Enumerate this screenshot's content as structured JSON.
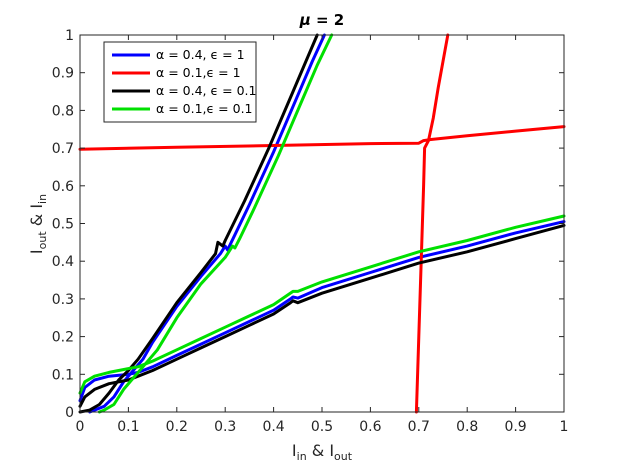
{
  "chart_data": {
    "type": "line",
    "title": {
      "symbol": "μ",
      "rest": " = 2"
    },
    "xlabel": {
      "main": "I",
      "sub1": "in",
      "mid": " & I",
      "sub2": "out"
    },
    "ylabel": {
      "main": "I",
      "sub1": "out",
      "mid": " & I",
      "sub2": "in"
    },
    "xlim": [
      0,
      1
    ],
    "ylim": [
      0,
      1
    ],
    "xticks": [
      "0",
      "0.1",
      "0.2",
      "0.3",
      "0.4",
      "0.5",
      "0.6",
      "0.7",
      "0.8",
      "0.9",
      "1"
    ],
    "yticks": [
      "0",
      "0.1",
      "0.2",
      "0.3",
      "0.4",
      "0.5",
      "0.6",
      "0.7",
      "0.8",
      "0.9",
      "1"
    ],
    "grid": false,
    "legend_position": "top-left",
    "series": [
      {
        "name": "α = 0.4, ϵ = 1",
        "color": "#0000ff",
        "curves": [
          [
            [
              0.02,
              0.0
            ],
            [
              0.03,
              0.005
            ],
            [
              0.05,
              0.015
            ],
            [
              0.07,
              0.04
            ],
            [
              0.09,
              0.08
            ],
            [
              0.11,
              0.11
            ],
            [
              0.13,
              0.14
            ],
            [
              0.15,
              0.185
            ],
            [
              0.2,
              0.28
            ],
            [
              0.25,
              0.36
            ],
            [
              0.29,
              0.42
            ],
            [
              0.3,
              0.44
            ],
            [
              0.305,
              0.43
            ],
            [
              0.32,
              0.47
            ],
            [
              0.35,
              0.55
            ],
            [
              0.4,
              0.69
            ],
            [
              0.45,
              0.84
            ],
            [
              0.48,
              0.93
            ],
            [
              0.505,
              1.0
            ]
          ],
          [
            [
              0.0,
              0.03
            ],
            [
              0.01,
              0.065
            ],
            [
              0.03,
              0.085
            ],
            [
              0.06,
              0.095
            ],
            [
              0.1,
              0.1
            ],
            [
              0.12,
              0.105
            ],
            [
              0.15,
              0.12
            ],
            [
              0.2,
              0.15
            ],
            [
              0.25,
              0.18
            ],
            [
              0.3,
              0.21
            ],
            [
              0.35,
              0.24
            ],
            [
              0.4,
              0.27
            ],
            [
              0.435,
              0.3
            ],
            [
              0.44,
              0.305
            ],
            [
              0.45,
              0.302
            ],
            [
              0.5,
              0.33
            ],
            [
              0.6,
              0.37
            ],
            [
              0.7,
              0.41
            ],
            [
              0.8,
              0.44
            ],
            [
              0.9,
              0.475
            ],
            [
              1.0,
              0.505
            ]
          ]
        ]
      },
      {
        "name": "α = 0.1,ϵ = 1",
        "color": "#ff0000",
        "curves": [
          [
            [
              0.0,
              0.697
            ],
            [
              0.2,
              0.702
            ],
            [
              0.4,
              0.707
            ],
            [
              0.6,
              0.712
            ],
            [
              0.7,
              0.713
            ],
            [
              0.71,
              0.72
            ],
            [
              0.72,
              0.722
            ],
            [
              0.8,
              0.733
            ],
            [
              0.9,
              0.745
            ],
            [
              1.0,
              0.757
            ]
          ],
          [
            [
              0.695,
              0.0
            ],
            [
              0.7,
              0.2
            ],
            [
              0.705,
              0.4
            ],
            [
              0.71,
              0.6
            ],
            [
              0.712,
              0.7
            ],
            [
              0.72,
              0.72
            ],
            [
              0.73,
              0.78
            ],
            [
              0.74,
              0.86
            ],
            [
              0.75,
              0.93
            ],
            [
              0.76,
              1.0
            ]
          ]
        ]
      },
      {
        "name": "α = 0.4, ϵ = 0.1",
        "color": "#000000",
        "curves": [
          [
            [
              0.0,
              0.0
            ],
            [
              0.02,
              0.005
            ],
            [
              0.04,
              0.02
            ],
            [
              0.06,
              0.05
            ],
            [
              0.08,
              0.085
            ],
            [
              0.1,
              0.11
            ],
            [
              0.12,
              0.14
            ],
            [
              0.15,
              0.195
            ],
            [
              0.2,
              0.29
            ],
            [
              0.25,
              0.37
            ],
            [
              0.28,
              0.42
            ],
            [
              0.285,
              0.45
            ],
            [
              0.295,
              0.44
            ],
            [
              0.3,
              0.455
            ],
            [
              0.34,
              0.56
            ],
            [
              0.39,
              0.7
            ],
            [
              0.44,
              0.85
            ],
            [
              0.47,
              0.94
            ],
            [
              0.49,
              1.0
            ]
          ],
          [
            [
              0.0,
              0.015
            ],
            [
              0.01,
              0.04
            ],
            [
              0.03,
              0.06
            ],
            [
              0.06,
              0.075
            ],
            [
              0.1,
              0.085
            ],
            [
              0.12,
              0.095
            ],
            [
              0.15,
              0.11
            ],
            [
              0.2,
              0.14
            ],
            [
              0.25,
              0.17
            ],
            [
              0.3,
              0.2
            ],
            [
              0.35,
              0.23
            ],
            [
              0.4,
              0.26
            ],
            [
              0.435,
              0.29
            ],
            [
              0.44,
              0.295
            ],
            [
              0.45,
              0.29
            ],
            [
              0.5,
              0.315
            ],
            [
              0.6,
              0.355
            ],
            [
              0.7,
              0.395
            ],
            [
              0.8,
              0.425
            ],
            [
              0.9,
              0.46
            ],
            [
              1.0,
              0.495
            ]
          ]
        ]
      },
      {
        "name": "α = 0.1,ϵ = 0.1",
        "color": "#00e000",
        "curves": [
          [
            [
              0.04,
              0.0
            ],
            [
              0.05,
              0.005
            ],
            [
              0.07,
              0.02
            ],
            [
              0.09,
              0.06
            ],
            [
              0.11,
              0.09
            ],
            [
              0.13,
              0.12
            ],
            [
              0.16,
              0.165
            ],
            [
              0.2,
              0.25
            ],
            [
              0.25,
              0.34
            ],
            [
              0.3,
              0.41
            ],
            [
              0.315,
              0.44
            ],
            [
              0.32,
              0.435
            ],
            [
              0.33,
              0.46
            ],
            [
              0.36,
              0.54
            ],
            [
              0.41,
              0.68
            ],
            [
              0.46,
              0.83
            ],
            [
              0.49,
              0.92
            ],
            [
              0.52,
              1.0
            ]
          ],
          [
            [
              0.0,
              0.05
            ],
            [
              0.01,
              0.08
            ],
            [
              0.03,
              0.095
            ],
            [
              0.06,
              0.105
            ],
            [
              0.1,
              0.115
            ],
            [
              0.12,
              0.12
            ],
            [
              0.15,
              0.135
            ],
            [
              0.2,
              0.165
            ],
            [
              0.25,
              0.195
            ],
            [
              0.3,
              0.225
            ],
            [
              0.35,
              0.255
            ],
            [
              0.4,
              0.285
            ],
            [
              0.44,
              0.32
            ],
            [
              0.45,
              0.32
            ],
            [
              0.5,
              0.345
            ],
            [
              0.6,
              0.385
            ],
            [
              0.7,
              0.425
            ],
            [
              0.8,
              0.455
            ],
            [
              0.9,
              0.49
            ],
            [
              1.0,
              0.52
            ]
          ]
        ]
      }
    ]
  }
}
